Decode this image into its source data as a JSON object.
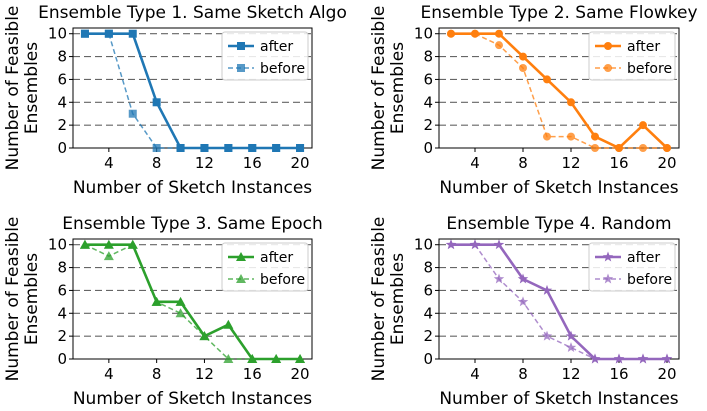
{
  "chart_data": [
    {
      "type": "line",
      "title": "Ensemble Type 1. Same Sketch Algo",
      "xlabel": "Number of Sketch Instances",
      "ylabel_lines": [
        "Number of Feasible",
        "Ensembles"
      ],
      "x": [
        2,
        4,
        6,
        8,
        10,
        12,
        14,
        16,
        18,
        20
      ],
      "xticks": [
        4,
        8,
        12,
        16,
        20
      ],
      "yticks": [
        0,
        2,
        4,
        6,
        8,
        10
      ],
      "xlim": [
        1,
        21
      ],
      "ylim": [
        0,
        10.5
      ],
      "grid": "horizontal-dashed",
      "legend_position": "top-right",
      "color": "#1f77b4",
      "marker": "square",
      "series": [
        {
          "name": "after",
          "style": "solid",
          "values": [
            10,
            10,
            10,
            4,
            0,
            0,
            0,
            0,
            0,
            0
          ]
        },
        {
          "name": "before",
          "style": "dashed",
          "values": [
            10,
            10,
            3,
            0,
            0,
            0,
            0,
            0,
            0,
            0
          ]
        }
      ]
    },
    {
      "type": "line",
      "title": "Ensemble Type 2. Same Flowkey",
      "xlabel": "Number of Sketch Instances",
      "ylabel_lines": [
        "Number of Feasible",
        "Ensembles"
      ],
      "x": [
        2,
        4,
        6,
        8,
        10,
        12,
        14,
        16,
        18,
        20
      ],
      "xticks": [
        4,
        8,
        12,
        16,
        20
      ],
      "yticks": [
        0,
        2,
        4,
        6,
        8,
        10
      ],
      "xlim": [
        1,
        21
      ],
      "ylim": [
        0,
        10.5
      ],
      "grid": "horizontal-dashed",
      "legend_position": "top-right",
      "color": "#ff7f0e",
      "marker": "circle",
      "series": [
        {
          "name": "after",
          "style": "solid",
          "values": [
            10,
            10,
            10,
            8,
            6,
            4,
            1,
            0,
            2,
            0
          ]
        },
        {
          "name": "before",
          "style": "dashed",
          "values": [
            10,
            10,
            9,
            7,
            1,
            1,
            0,
            0,
            0,
            0
          ]
        }
      ]
    },
    {
      "type": "line",
      "title": "Ensemble Type 3. Same Epoch",
      "xlabel": "Number of Sketch Instances",
      "ylabel_lines": [
        "Number of Feasible",
        "Ensembles"
      ],
      "x": [
        2,
        4,
        6,
        8,
        10,
        12,
        14,
        16,
        18,
        20
      ],
      "xticks": [
        4,
        8,
        12,
        16,
        20
      ],
      "yticks": [
        0,
        2,
        4,
        6,
        8,
        10
      ],
      "xlim": [
        1,
        21
      ],
      "ylim": [
        0,
        10.5
      ],
      "grid": "horizontal-dashed",
      "legend_position": "top-right",
      "color": "#2ca02c",
      "marker": "triangle",
      "series": [
        {
          "name": "after",
          "style": "solid",
          "values": [
            10,
            10,
            10,
            5,
            5,
            2,
            3,
            0,
            0,
            0
          ]
        },
        {
          "name": "before",
          "style": "dashed",
          "values": [
            10,
            9,
            10,
            5,
            4,
            2,
            0,
            0,
            0,
            0
          ]
        }
      ]
    },
    {
      "type": "line",
      "title": "Ensemble Type 4. Random",
      "xlabel": "Number of Sketch Instances",
      "ylabel_lines": [
        "Number of Feasible",
        "Ensembles"
      ],
      "x": [
        2,
        4,
        6,
        8,
        10,
        12,
        14,
        16,
        18,
        20
      ],
      "xticks": [
        4,
        8,
        12,
        16,
        20
      ],
      "yticks": [
        0,
        2,
        4,
        6,
        8,
        10
      ],
      "xlim": [
        1,
        21
      ],
      "ylim": [
        0,
        10.5
      ],
      "grid": "horizontal-dashed",
      "legend_position": "top-right",
      "color": "#9467bd",
      "marker": "star",
      "series": [
        {
          "name": "after",
          "style": "solid",
          "values": [
            10,
            10,
            10,
            7,
            6,
            2,
            0,
            0,
            0,
            0
          ]
        },
        {
          "name": "before",
          "style": "dashed",
          "values": [
            10,
            10,
            7,
            5,
            2,
            1,
            0,
            0,
            0,
            0
          ]
        }
      ]
    }
  ]
}
